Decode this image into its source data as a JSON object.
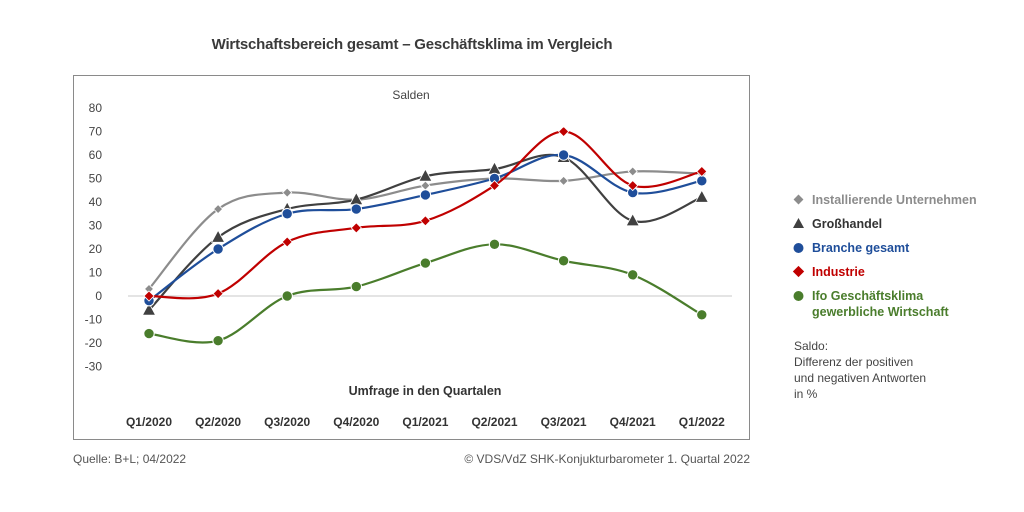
{
  "chart_data": {
    "type": "line",
    "title": "Wirtschaftsbereich gesamt – Geschäftsklima im Vergleich",
    "subtitle": "Salden",
    "xlabel": "Umfrage in den Quartalen",
    "ylabel": "",
    "ylim": [
      -30,
      80
    ],
    "yticks": [
      80,
      70,
      60,
      50,
      40,
      30,
      20,
      10,
      0,
      -10,
      -20,
      -30
    ],
    "categories": [
      "Q1/2020",
      "Q2/2020",
      "Q3/2020",
      "Q4/2020",
      "Q1/2021",
      "Q2/2021",
      "Q3/2021",
      "Q4/2021",
      "Q1/2022"
    ],
    "grid": false,
    "zero_line": true,
    "legend_position": "right",
    "series": [
      {
        "name": "Installierende Unternehmen",
        "color": "#8c8c8c",
        "marker": "diamond",
        "values": [
          3,
          37,
          44,
          41,
          47,
          50,
          49,
          53,
          52
        ]
      },
      {
        "name": "Großhandel",
        "color": "#404040",
        "marker": "triangle",
        "values": [
          -6,
          25,
          37,
          41,
          51,
          54,
          59,
          32,
          42
        ]
      },
      {
        "name": "Branche gesamt",
        "color": "#1f4e9a",
        "marker": "circle",
        "values": [
          -2,
          20,
          35,
          37,
          43,
          50,
          60,
          44,
          49
        ]
      },
      {
        "name": "Industrie",
        "color": "#c00000",
        "marker": "diamond",
        "values": [
          0,
          1,
          23,
          29,
          32,
          47,
          70,
          47,
          53
        ]
      },
      {
        "name": "Ifo Geschäftsklima gewerbliche Wirtschaft",
        "color": "#4a7d2c",
        "marker": "circle",
        "values": [
          -16,
          -19,
          0,
          4,
          14,
          22,
          15,
          9,
          -8
        ]
      }
    ]
  },
  "legend": {
    "items": [
      {
        "line1": "Installierende Unternehmen",
        "line2": ""
      },
      {
        "line1": "Großhandel",
        "line2": ""
      },
      {
        "line1": "Branche gesamt",
        "line2": ""
      },
      {
        "line1": "Industrie",
        "line2": ""
      },
      {
        "line1": "Ifo Geschäftsklima",
        "line2": "gewerbliche Wirtschaft"
      }
    ]
  },
  "note": {
    "line1": "Saldo:",
    "line2": "Differenz der positiven",
    "line3": "und negativen Antworten",
    "line4": "in %"
  },
  "footer": {
    "source": "Quelle: B+L; 04/2022",
    "copyright": "© VDS/VdZ SHK-Konjukturbarometer 1. Quartal 2022"
  }
}
